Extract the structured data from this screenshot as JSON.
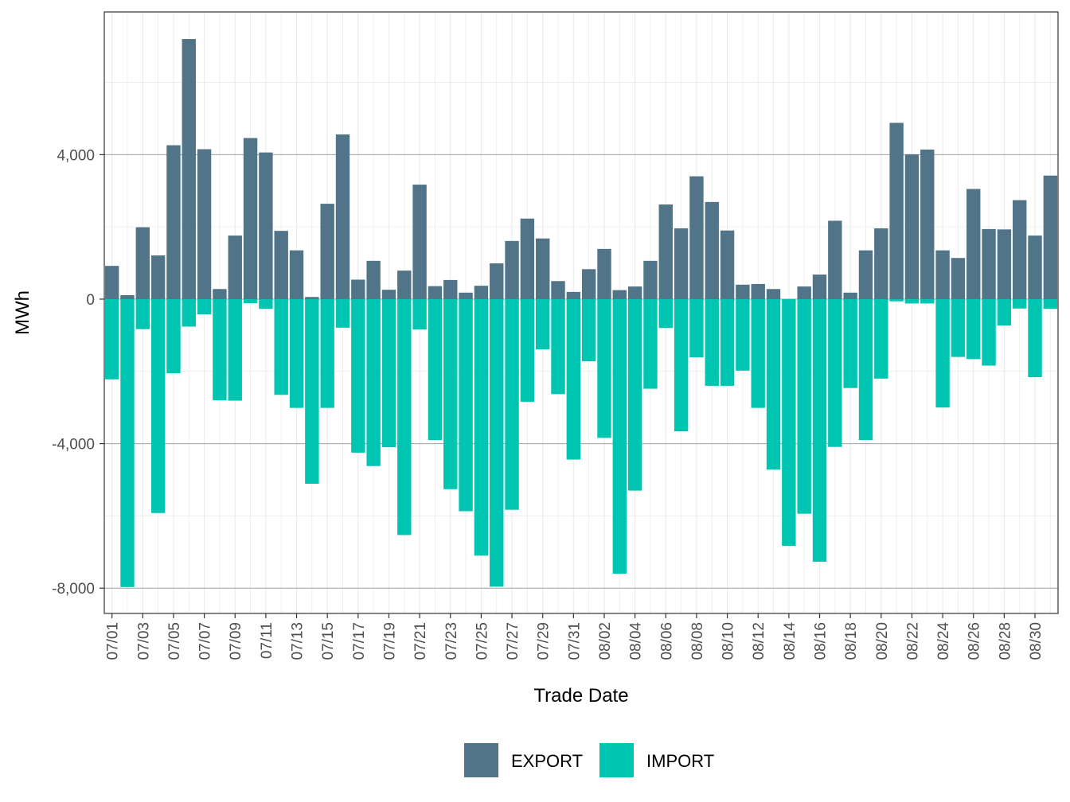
{
  "chart_data": {
    "type": "bar",
    "title": "",
    "xlabel": "Trade Date",
    "ylabel": "MWh",
    "ylim": [
      -8700,
      7950
    ],
    "yticks": [
      -8000,
      -4000,
      0,
      4000
    ],
    "ytick_labels": [
      "-8,000",
      "-4,000",
      "0",
      "4,000"
    ],
    "grid": true,
    "legend_position": "bottom",
    "categories": [
      "07/01",
      "07/02",
      "07/03",
      "07/04",
      "07/05",
      "07/06",
      "07/07",
      "07/08",
      "07/09",
      "07/10",
      "07/11",
      "07/12",
      "07/13",
      "07/14",
      "07/15",
      "07/16",
      "07/17",
      "07/18",
      "07/19",
      "07/20",
      "07/21",
      "07/22",
      "07/23",
      "07/24",
      "07/25",
      "07/26",
      "07/27",
      "07/28",
      "07/29",
      "07/30",
      "07/31",
      "08/01",
      "08/02",
      "08/03",
      "08/04",
      "08/05",
      "08/06",
      "08/07",
      "08/08",
      "08/09",
      "08/10",
      "08/11",
      "08/12",
      "08/13",
      "08/14",
      "08/15",
      "08/16",
      "08/17",
      "08/18",
      "08/19",
      "08/20",
      "08/21",
      "08/22",
      "08/23",
      "08/24",
      "08/25",
      "08/26",
      "08/27",
      "08/28",
      "08/29",
      "08/30",
      "08/31"
    ],
    "tick_labels": [
      "07/01",
      "07/03",
      "07/05",
      "07/07",
      "07/09",
      "07/11",
      "07/13",
      "07/15",
      "07/17",
      "07/19",
      "07/21",
      "07/23",
      "07/25",
      "07/27",
      "07/29",
      "07/31",
      "08/02",
      "08/04",
      "08/06",
      "08/08",
      "08/10",
      "08/12",
      "08/14",
      "08/16",
      "08/18",
      "08/20",
      "08/22",
      "08/24",
      "08/26",
      "08/28",
      "08/30"
    ],
    "series": [
      {
        "name": "EXPORT",
        "color": "#517489",
        "values": [
          920,
          110,
          1990,
          1210,
          4260,
          7200,
          4150,
          280,
          1760,
          4460,
          4060,
          1890,
          1350,
          60,
          2640,
          4560,
          540,
          1060,
          260,
          790,
          3170,
          360,
          530,
          180,
          370,
          990,
          1610,
          2230,
          1680,
          500,
          200,
          830,
          1390,
          250,
          350,
          1060,
          2620,
          1960,
          3400,
          2690,
          1900,
          400,
          420,
          280,
          0,
          350,
          680,
          2170,
          180,
          1350,
          1960,
          4880,
          4010,
          4140,
          1350,
          1140,
          3050,
          1940,
          1930,
          2740,
          1760,
          3420
        ]
      },
      {
        "name": "IMPORT",
        "color": "#00C5B1",
        "values": [
          -2220,
          -7970,
          -830,
          -5920,
          -2050,
          -760,
          -420,
          -2800,
          -2810,
          -110,
          -270,
          -2650,
          -3010,
          -5110,
          -3010,
          -790,
          -4250,
          -4620,
          -4100,
          -6530,
          -840,
          -3900,
          -5260,
          -5870,
          -7100,
          -7960,
          -5830,
          -2840,
          -1390,
          -2630,
          -4440,
          -1720,
          -3840,
          -7600,
          -5300,
          -2480,
          -800,
          -3660,
          -1610,
          -2400,
          -2400,
          -1980,
          -3010,
          -4720,
          -6830,
          -5940,
          -7270,
          -4090,
          -2460,
          -3900,
          -2200,
          -60,
          -120,
          -120,
          -3000,
          -1600,
          -1660,
          -1840,
          -730,
          -260,
          -2160,
          -270
        ]
      }
    ]
  }
}
